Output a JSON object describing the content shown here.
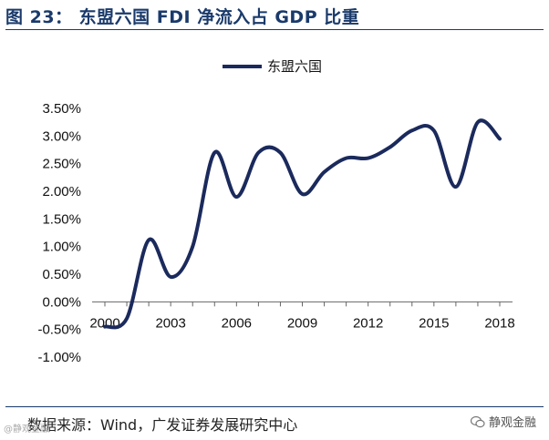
{
  "figure": {
    "title": "图 23： 东盟六国 FDI 净流入占 GDP 比重",
    "source": "数据来源：Wind，广发证券发展研究中心",
    "watermark": "静观金融",
    "watermark_left": "@静观金融"
  },
  "colors": {
    "title": "#1a3a6b",
    "series": "#1b2a5c"
  },
  "chart_data": {
    "type": "line",
    "title": "",
    "xlabel": "",
    "ylabel": "",
    "ylim": [
      -1.0,
      3.5
    ],
    "y_ticks": [
      "-1.00%",
      "-0.50%",
      "0.00%",
      "0.50%",
      "1.00%",
      "1.50%",
      "2.00%",
      "2.50%",
      "3.00%",
      "3.50%"
    ],
    "x_ticks": [
      "2000",
      "2003",
      "2006",
      "2009",
      "2012",
      "2015",
      "2018"
    ],
    "x": [
      2000,
      2001,
      2002,
      2003,
      2004,
      2005,
      2006,
      2007,
      2008,
      2009,
      2010,
      2011,
      2012,
      2013,
      2014,
      2015,
      2016,
      2017,
      2018
    ],
    "series": [
      {
        "name": "东盟六国",
        "values": [
          -0.45,
          -0.3,
          1.12,
          0.45,
          1.0,
          2.7,
          1.9,
          2.7,
          2.7,
          1.95,
          2.35,
          2.6,
          2.6,
          2.8,
          3.1,
          3.1,
          2.08,
          3.25,
          2.95
        ]
      }
    ],
    "legend": "top-center",
    "grid": false
  }
}
